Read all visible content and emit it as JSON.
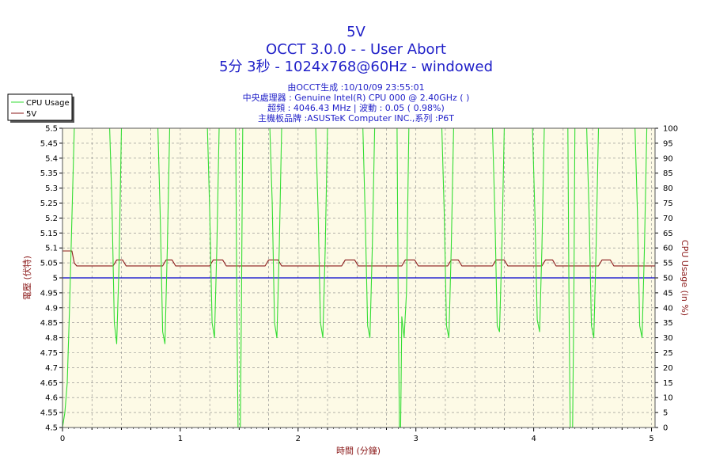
{
  "titles": {
    "line1": "5V",
    "line2": "OCCT 3.0.0 -  - User Abort",
    "line3": "5分 3秒 - 1024x768@60Hz - windowed"
  },
  "info": {
    "line1": "由OCCT生成 :10/10/09 23:55:01",
    "line2": "中央處理器 : Genuine Intel(R) CPU 000 @ 2.40GHz (  )",
    "line3": "超頻 : 4046.43 MHz | 波動 : 0.05 ( 0.98%)",
    "line4": "主機板品牌 :ASUSTeK Computer INC.,系列 :P6T"
  },
  "legend": {
    "cpu": "CPU Usage",
    "v5": "5V"
  },
  "colors": {
    "cpu": "#33dd33",
    "v5": "#8b1a1a",
    "ref": "#0000cc",
    "plot_bg": "#fdfae6",
    "grid": "#888888"
  },
  "chart_data": {
    "type": "line",
    "title": "5V",
    "xlabel": "時間 (分鐘)",
    "ylabel_left": "電壓 (伏特)",
    "ylabel_right": "CPU Usage (in %)",
    "xlim": [
      0,
      5.03
    ],
    "ylim_left": [
      4.5,
      5.5
    ],
    "ylim_right": [
      0,
      100
    ],
    "x_ticks": [
      0,
      1,
      2,
      3,
      4,
      5
    ],
    "y_left_ticks": [
      "4.5",
      "4.55",
      "4.6",
      "4.65",
      "4.7",
      "4.75",
      "4.8",
      "4.85",
      "4.9",
      "4.95",
      "5",
      "5.05",
      "5.1",
      "5.15",
      "5.2",
      "5.25",
      "5.3",
      "5.35",
      "5.4",
      "5.45",
      "5.5"
    ],
    "y_right_ticks": [
      "0",
      "5",
      "10",
      "15",
      "20",
      "25",
      "30",
      "35",
      "40",
      "45",
      "50",
      "55",
      "60",
      "65",
      "70",
      "75",
      "80",
      "85",
      "90",
      "95",
      "100"
    ],
    "grid": true,
    "legend_position": "top-left",
    "reference_line_left": 5.0,
    "series": [
      {
        "name": "5V",
        "axis": "left",
        "x": [
          0,
          0.08,
          0.1,
          0.12,
          0.43,
          0.46,
          0.51,
          0.54,
          0.85,
          0.88,
          0.93,
          0.96,
          1.25,
          1.28,
          1.36,
          1.39,
          1.72,
          1.75,
          1.83,
          1.86,
          2.37,
          2.4,
          2.48,
          2.51,
          2.88,
          2.91,
          2.99,
          3.02,
          3.27,
          3.3,
          3.36,
          3.39,
          3.65,
          3.68,
          3.75,
          3.78,
          4.07,
          4.1,
          4.16,
          4.19,
          4.55,
          4.58,
          4.65,
          4.68,
          5.03
        ],
        "values": [
          5.09,
          5.09,
          5.05,
          5.04,
          5.04,
          5.06,
          5.06,
          5.04,
          5.04,
          5.06,
          5.06,
          5.04,
          5.04,
          5.06,
          5.06,
          5.04,
          5.04,
          5.06,
          5.06,
          5.04,
          5.04,
          5.06,
          5.06,
          5.04,
          5.04,
          5.06,
          5.06,
          5.04,
          5.04,
          5.06,
          5.06,
          5.04,
          5.04,
          5.06,
          5.06,
          5.04,
          5.04,
          5.06,
          5.06,
          5.04,
          5.04,
          5.06,
          5.06,
          5.04,
          5.04
        ]
      },
      {
        "name": "CPU Usage",
        "axis": "right",
        "x": [
          0,
          0.02,
          0.04,
          0.06,
          0.08,
          0.1,
          0.11,
          0.4,
          0.42,
          0.44,
          0.46,
          0.48,
          0.5,
          0.81,
          0.83,
          0.85,
          0.87,
          0.89,
          0.91,
          1.23,
          1.25,
          1.27,
          1.29,
          1.31,
          1.33,
          1.47,
          1.48,
          1.49,
          1.5,
          1.51,
          1.52,
          1.53,
          1.76,
          1.78,
          1.8,
          1.82,
          1.84,
          1.86,
          2.15,
          2.17,
          2.19,
          2.21,
          2.23,
          2.25,
          2.55,
          2.57,
          2.59,
          2.61,
          2.63,
          2.65,
          2.84,
          2.85,
          2.86,
          2.87,
          2.88,
          2.9,
          2.92,
          2.94,
          3.22,
          3.24,
          3.26,
          3.28,
          3.3,
          3.32,
          3.65,
          3.67,
          3.69,
          3.71,
          3.73,
          3.75,
          3.99,
          4.01,
          4.03,
          4.05,
          4.07,
          4.09,
          4.29,
          4.3,
          4.31,
          4.32,
          4.33,
          4.34,
          4.35,
          4.45,
          4.47,
          4.49,
          4.51,
          4.53,
          4.55,
          4.86,
          4.88,
          4.9,
          4.92,
          4.94,
          4.96,
          5.0,
          5.03
        ],
        "values": [
          0,
          5,
          15,
          40,
          70,
          100,
          100,
          100,
          75,
          35,
          28,
          55,
          100,
          100,
          70,
          32,
          28,
          60,
          100,
          100,
          72,
          35,
          30,
          60,
          100,
          100,
          40,
          0,
          0,
          0,
          45,
          100,
          100,
          75,
          35,
          30,
          60,
          100,
          100,
          72,
          35,
          30,
          60,
          100,
          100,
          70,
          34,
          30,
          60,
          100,
          100,
          40,
          0,
          0,
          37,
          30,
          45,
          100,
          100,
          72,
          34,
          30,
          60,
          100,
          100,
          72,
          34,
          32,
          60,
          100,
          100,
          72,
          36,
          32,
          60,
          100,
          100,
          40,
          0,
          0,
          0,
          40,
          100,
          100,
          72,
          34,
          30,
          60,
          100,
          100,
          72,
          34,
          30,
          60,
          100,
          100,
          100
        ]
      }
    ]
  }
}
